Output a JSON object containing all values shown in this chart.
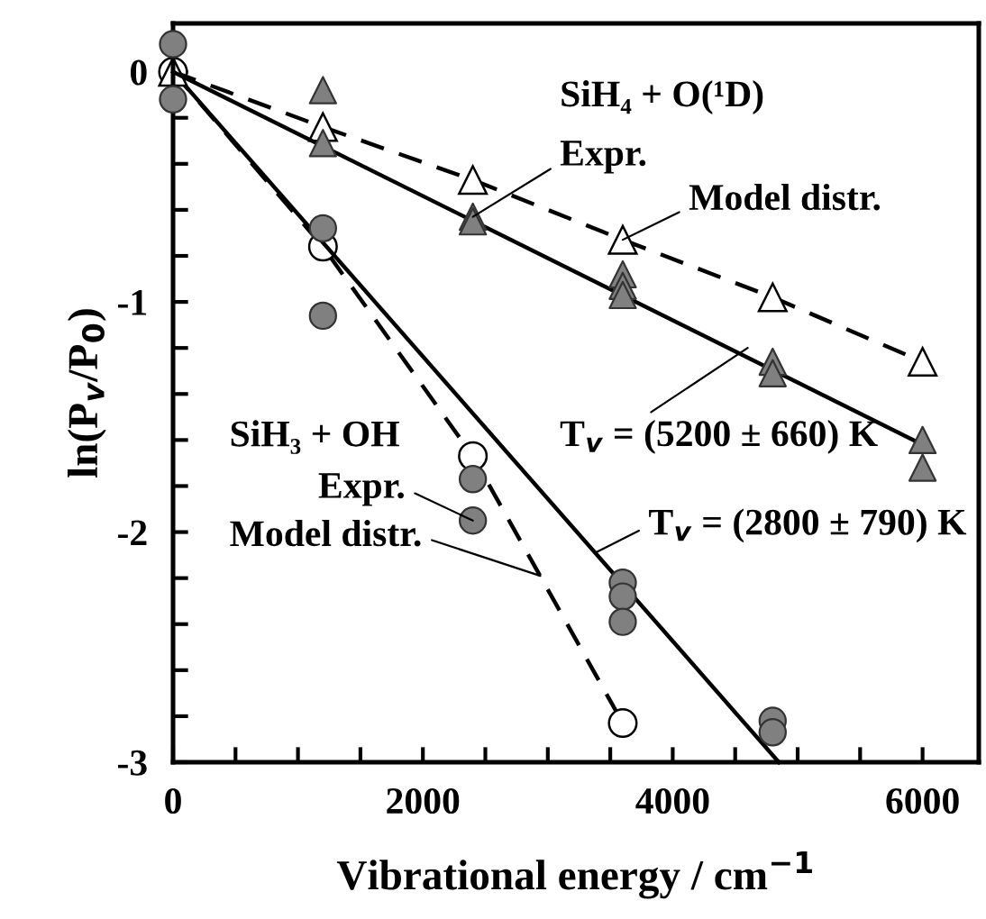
{
  "chart_data": {
    "type": "scatter",
    "xlabel": "Vibrational energy / cm$^{−1}$",
    "ylabel": "ln(P$_{v}$/P$_{0}$)",
    "xlim": [
      0,
      6450
    ],
    "ylim": [
      -3,
      0.21
    ],
    "xticks": [
      0,
      {
        "value": 500,
        "label": null
      },
      {
        "value": 1000,
        "label": null
      },
      {
        "value": 1500,
        "label": null
      },
      2000,
      {
        "value": 2500,
        "label": null
      },
      {
        "value": 3000,
        "label": null
      },
      {
        "value": 3500,
        "label": null
      },
      4000,
      {
        "value": 4500,
        "label": null
      },
      {
        "value": 5000,
        "label": null
      },
      {
        "value": 5500,
        "label": null
      },
      6000
    ],
    "yticks": [
      -3,
      {
        "value": -2.8,
        "label": null
      },
      {
        "value": -2.6,
        "label": null
      },
      {
        "value": -2.4,
        "label": null
      },
      {
        "value": -2.2,
        "label": null
      },
      -2,
      {
        "value": -1.8,
        "label": null
      },
      {
        "value": -1.6,
        "label": null
      },
      {
        "value": -1.4,
        "label": null
      },
      {
        "value": -1.2,
        "label": null
      },
      -1,
      {
        "value": -0.8,
        "label": null
      },
      {
        "value": -0.6,
        "label": null
      },
      {
        "value": -0.4,
        "label": null
      },
      {
        "value": -0.2,
        "label": null
      },
      0
    ],
    "grid": false,
    "legend": false,
    "series": [
      {
        "marker": "circle",
        "color": "#808080",
        "x": [
          0,
          0,
          1200,
          1200,
          2400,
          2400,
          3600,
          3600,
          3600,
          4800,
          4800
        ],
        "values": [
          0.12,
          -0.12,
          -0.68,
          -1.06,
          -1.77,
          -1.95,
          -2.22,
          -2.28,
          -2.39,
          -2.82,
          -2.87
        ]
      },
      {
        "type": "line",
        "marker": "circle",
        "line_style": "dashed",
        "color": "#000000",
        "x": [
          0,
          1200,
          2400,
          3600
        ],
        "values": [
          0,
          -0.76,
          -1.67,
          -2.83
        ]
      },
      {
        "type": "line",
        "line_style": "solid",
        "color": "#000000",
        "x": [
          0,
          4850
        ],
        "values": [
          0,
          -3
        ]
      },
      {
        "marker": "triangle",
        "color": "#808080",
        "x": [
          1200,
          1200,
          2400,
          2400,
          3600,
          3600,
          3600,
          4800,
          4800,
          6000,
          6000
        ],
        "values": [
          -0.08,
          -0.31,
          -0.63,
          -0.65,
          -0.88,
          -0.93,
          -0.97,
          -1.26,
          -1.31,
          -1.6,
          -1.72
        ]
      },
      {
        "type": "line",
        "marker": "triangle",
        "line_style": "dashed",
        "color": "#000000",
        "x": [
          0,
          1200,
          2400,
          3600,
          4800,
          6000
        ],
        "values": [
          0,
          -0.24,
          -0.47,
          -0.73,
          -0.98,
          -1.26
        ]
      },
      {
        "type": "line",
        "line_style": "solid",
        "color": "#000000",
        "x": [
          0,
          6000
        ],
        "values": [
          0,
          -1.62
        ]
      }
    ],
    "annotations": [
      "SiH₄ + O(¹D)",
      {
        "text": "Expr.",
        "x": 2400,
        "y": -0.63
      },
      {
        "text": "Model distr.",
        "x": 3600,
        "y": -0.73
      },
      {
        "text": "T$_{v}$ = (5200 ± 660) K",
        "x": 4600,
        "y": -1.2
      },
      "SiH₃ + OH",
      {
        "text": "Expr.",
        "x": 2400,
        "y": -1.95
      },
      {
        "text": "Model distr.",
        "x": 2940,
        "y": -2.19
      },
      {
        "text": "T$_{v}$ = (2800 ± 790) K",
        "x": 3380,
        "y": -2.09
      }
    ]
  }
}
